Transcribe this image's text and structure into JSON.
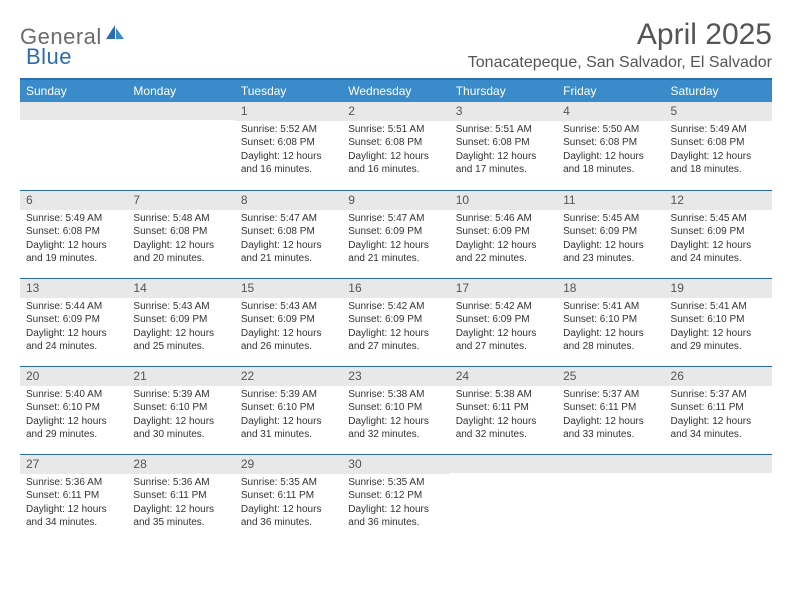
{
  "brand": {
    "text_general": "General",
    "text_blue": "Blue",
    "general_color": "#6b6b6b",
    "blue_color": "#2a6db0"
  },
  "title": "April 2025",
  "subtitle": "Tonacatepeque, San Salvador, El Salvador",
  "colors": {
    "header_band": "#3a8bc9",
    "border": "#2a6db0",
    "daynum_bg": "#e8e8e8",
    "text": "#333333",
    "title_text": "#555555"
  },
  "weekdays": [
    "Sunday",
    "Monday",
    "Tuesday",
    "Wednesday",
    "Thursday",
    "Friday",
    "Saturday"
  ],
  "weeks": [
    [
      null,
      null,
      {
        "n": "1",
        "sunrise": "5:52 AM",
        "sunset": "6:08 PM",
        "daylight": "12 hours and 16 minutes."
      },
      {
        "n": "2",
        "sunrise": "5:51 AM",
        "sunset": "6:08 PM",
        "daylight": "12 hours and 16 minutes."
      },
      {
        "n": "3",
        "sunrise": "5:51 AM",
        "sunset": "6:08 PM",
        "daylight": "12 hours and 17 minutes."
      },
      {
        "n": "4",
        "sunrise": "5:50 AM",
        "sunset": "6:08 PM",
        "daylight": "12 hours and 18 minutes."
      },
      {
        "n": "5",
        "sunrise": "5:49 AM",
        "sunset": "6:08 PM",
        "daylight": "12 hours and 18 minutes."
      }
    ],
    [
      {
        "n": "6",
        "sunrise": "5:49 AM",
        "sunset": "6:08 PM",
        "daylight": "12 hours and 19 minutes."
      },
      {
        "n": "7",
        "sunrise": "5:48 AM",
        "sunset": "6:08 PM",
        "daylight": "12 hours and 20 minutes."
      },
      {
        "n": "8",
        "sunrise": "5:47 AM",
        "sunset": "6:08 PM",
        "daylight": "12 hours and 21 minutes."
      },
      {
        "n": "9",
        "sunrise": "5:47 AM",
        "sunset": "6:09 PM",
        "daylight": "12 hours and 21 minutes."
      },
      {
        "n": "10",
        "sunrise": "5:46 AM",
        "sunset": "6:09 PM",
        "daylight": "12 hours and 22 minutes."
      },
      {
        "n": "11",
        "sunrise": "5:45 AM",
        "sunset": "6:09 PM",
        "daylight": "12 hours and 23 minutes."
      },
      {
        "n": "12",
        "sunrise": "5:45 AM",
        "sunset": "6:09 PM",
        "daylight": "12 hours and 24 minutes."
      }
    ],
    [
      {
        "n": "13",
        "sunrise": "5:44 AM",
        "sunset": "6:09 PM",
        "daylight": "12 hours and 24 minutes."
      },
      {
        "n": "14",
        "sunrise": "5:43 AM",
        "sunset": "6:09 PM",
        "daylight": "12 hours and 25 minutes."
      },
      {
        "n": "15",
        "sunrise": "5:43 AM",
        "sunset": "6:09 PM",
        "daylight": "12 hours and 26 minutes."
      },
      {
        "n": "16",
        "sunrise": "5:42 AM",
        "sunset": "6:09 PM",
        "daylight": "12 hours and 27 minutes."
      },
      {
        "n": "17",
        "sunrise": "5:42 AM",
        "sunset": "6:09 PM",
        "daylight": "12 hours and 27 minutes."
      },
      {
        "n": "18",
        "sunrise": "5:41 AM",
        "sunset": "6:10 PM",
        "daylight": "12 hours and 28 minutes."
      },
      {
        "n": "19",
        "sunrise": "5:41 AM",
        "sunset": "6:10 PM",
        "daylight": "12 hours and 29 minutes."
      }
    ],
    [
      {
        "n": "20",
        "sunrise": "5:40 AM",
        "sunset": "6:10 PM",
        "daylight": "12 hours and 29 minutes."
      },
      {
        "n": "21",
        "sunrise": "5:39 AM",
        "sunset": "6:10 PM",
        "daylight": "12 hours and 30 minutes."
      },
      {
        "n": "22",
        "sunrise": "5:39 AM",
        "sunset": "6:10 PM",
        "daylight": "12 hours and 31 minutes."
      },
      {
        "n": "23",
        "sunrise": "5:38 AM",
        "sunset": "6:10 PM",
        "daylight": "12 hours and 32 minutes."
      },
      {
        "n": "24",
        "sunrise": "5:38 AM",
        "sunset": "6:11 PM",
        "daylight": "12 hours and 32 minutes."
      },
      {
        "n": "25",
        "sunrise": "5:37 AM",
        "sunset": "6:11 PM",
        "daylight": "12 hours and 33 minutes."
      },
      {
        "n": "26",
        "sunrise": "5:37 AM",
        "sunset": "6:11 PM",
        "daylight": "12 hours and 34 minutes."
      }
    ],
    [
      {
        "n": "27",
        "sunrise": "5:36 AM",
        "sunset": "6:11 PM",
        "daylight": "12 hours and 34 minutes."
      },
      {
        "n": "28",
        "sunrise": "5:36 AM",
        "sunset": "6:11 PM",
        "daylight": "12 hours and 35 minutes."
      },
      {
        "n": "29",
        "sunrise": "5:35 AM",
        "sunset": "6:11 PM",
        "daylight": "12 hours and 36 minutes."
      },
      {
        "n": "30",
        "sunrise": "5:35 AM",
        "sunset": "6:12 PM",
        "daylight": "12 hours and 36 minutes."
      },
      null,
      null,
      null
    ]
  ],
  "labels": {
    "sunrise": "Sunrise: ",
    "sunset": "Sunset: ",
    "daylight": "Daylight: "
  }
}
